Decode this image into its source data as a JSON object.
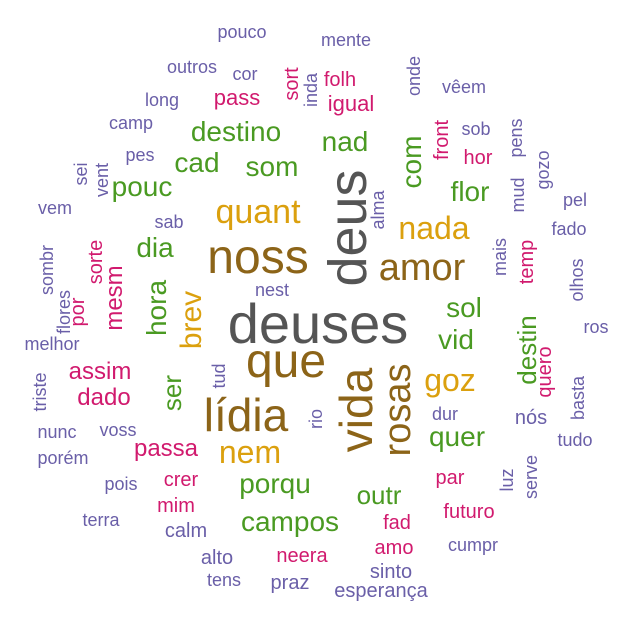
{
  "palette": {
    "gray": "#555555",
    "brown": "#8C6418",
    "gold": "#DBA00E",
    "green": "#4A9A22",
    "magenta": "#D11A6E",
    "purple": "#6A5FA8"
  },
  "words": [
    {
      "text": "deuses",
      "color": "gray",
      "level": 10
    },
    {
      "text": "deus",
      "color": "gray",
      "level": 9
    },
    {
      "text": "noss",
      "color": "brown",
      "level": 8
    },
    {
      "text": "que",
      "color": "brown",
      "level": 8
    },
    {
      "text": "lídia",
      "color": "brown",
      "level": 8
    },
    {
      "text": "vida",
      "color": "brown",
      "level": 8
    },
    {
      "text": "amor",
      "color": "brown",
      "level": 7
    },
    {
      "text": "rosas",
      "color": "brown",
      "level": 7
    },
    {
      "text": "quant",
      "color": "gold",
      "level": 6
    },
    {
      "text": "nada",
      "color": "gold",
      "level": 6
    },
    {
      "text": "nem",
      "color": "gold",
      "level": 6
    },
    {
      "text": "goz",
      "color": "gold",
      "level": 6
    },
    {
      "text": "brev",
      "color": "gold",
      "level": 6
    },
    {
      "text": "destino",
      "color": "green",
      "level": 5
    },
    {
      "text": "nad",
      "color": "green",
      "level": 5
    },
    {
      "text": "com",
      "color": "green",
      "level": 5
    },
    {
      "text": "cad",
      "color": "green",
      "level": 5
    },
    {
      "text": "som",
      "color": "green",
      "level": 5
    },
    {
      "text": "pouc",
      "color": "green",
      "level": 5
    },
    {
      "text": "flor",
      "color": "green",
      "level": 5
    },
    {
      "text": "dia",
      "color": "green",
      "level": 5
    },
    {
      "text": "sol",
      "color": "green",
      "level": 5
    },
    {
      "text": "hora",
      "color": "green",
      "level": 5
    },
    {
      "text": "vid",
      "color": "green",
      "level": 5
    },
    {
      "text": "ser",
      "color": "green",
      "level": 5
    },
    {
      "text": "quer",
      "color": "green",
      "level": 5
    },
    {
      "text": "porqu",
      "color": "green",
      "level": 5
    },
    {
      "text": "outr",
      "color": "green",
      "level": 5
    },
    {
      "text": "campos",
      "color": "green",
      "level": 5
    },
    {
      "text": "destin",
      "color": "green",
      "level": 5
    },
    {
      "text": "passa",
      "color": "magenta",
      "level": 4
    },
    {
      "text": "assim",
      "color": "magenta",
      "level": 4
    },
    {
      "text": "dado",
      "color": "magenta",
      "level": 4
    },
    {
      "text": "mesm",
      "color": "magenta",
      "level": 4
    },
    {
      "text": "pass",
      "color": "magenta",
      "level": 4
    },
    {
      "text": "igual",
      "color": "magenta",
      "level": 4
    },
    {
      "text": "sort",
      "color": "magenta",
      "level": 3
    },
    {
      "text": "folh",
      "color": "magenta",
      "level": 3
    },
    {
      "text": "hor",
      "color": "magenta",
      "level": 3
    },
    {
      "text": "front",
      "color": "magenta",
      "level": 3
    },
    {
      "text": "temp",
      "color": "magenta",
      "level": 3
    },
    {
      "text": "quero",
      "color": "magenta",
      "level": 3
    },
    {
      "text": "crer",
      "color": "magenta",
      "level": 3
    },
    {
      "text": "mim",
      "color": "magenta",
      "level": 3
    },
    {
      "text": "par",
      "color": "magenta",
      "level": 3
    },
    {
      "text": "futuro",
      "color": "magenta",
      "level": 3
    },
    {
      "text": "fad",
      "color": "magenta",
      "level": 3
    },
    {
      "text": "neera",
      "color": "magenta",
      "level": 3
    },
    {
      "text": "amo",
      "color": "magenta",
      "level": 3
    },
    {
      "text": "por",
      "color": "magenta",
      "level": 3
    },
    {
      "text": "sorte",
      "color": "magenta",
      "level": 3
    },
    {
      "text": "pouco",
      "color": "purple",
      "level": 1
    },
    {
      "text": "mente",
      "color": "purple",
      "level": 1
    },
    {
      "text": "outros",
      "color": "purple",
      "level": 1
    },
    {
      "text": "cor",
      "color": "purple",
      "level": 1
    },
    {
      "text": "onde",
      "color": "purple",
      "level": 1
    },
    {
      "text": "vêem",
      "color": "purple",
      "level": 1
    },
    {
      "text": "inda",
      "color": "purple",
      "level": 1
    },
    {
      "text": "long",
      "color": "purple",
      "level": 1
    },
    {
      "text": "camp",
      "color": "purple",
      "level": 1
    },
    {
      "text": "sob",
      "color": "purple",
      "level": 1
    },
    {
      "text": "pens",
      "color": "purple",
      "level": 1
    },
    {
      "text": "pes",
      "color": "purple",
      "level": 1
    },
    {
      "text": "gozo",
      "color": "purple",
      "level": 1
    },
    {
      "text": "sei",
      "color": "purple",
      "level": 1
    },
    {
      "text": "vent",
      "color": "purple",
      "level": 1
    },
    {
      "text": "vem",
      "color": "purple",
      "level": 1
    },
    {
      "text": "alma",
      "color": "purple",
      "level": 1
    },
    {
      "text": "mud",
      "color": "purple",
      "level": 1
    },
    {
      "text": "pel",
      "color": "purple",
      "level": 1
    },
    {
      "text": "sab",
      "color": "purple",
      "level": 1
    },
    {
      "text": "fado",
      "color": "purple",
      "level": 1
    },
    {
      "text": "sombr",
      "color": "purple",
      "level": 1
    },
    {
      "text": "mais",
      "color": "purple",
      "level": 1
    },
    {
      "text": "olhos",
      "color": "purple",
      "level": 1
    },
    {
      "text": "flores",
      "color": "purple",
      "level": 1
    },
    {
      "text": "nest",
      "color": "purple",
      "level": 1
    },
    {
      "text": "ros",
      "color": "purple",
      "level": 1
    },
    {
      "text": "melhor",
      "color": "purple",
      "level": 1
    },
    {
      "text": "tud",
      "color": "purple",
      "level": 1
    },
    {
      "text": "triste",
      "color": "purple",
      "level": 1
    },
    {
      "text": "basta",
      "color": "purple",
      "level": 1
    },
    {
      "text": "rio",
      "color": "purple",
      "level": 1
    },
    {
      "text": "dur",
      "color": "purple",
      "level": 1
    },
    {
      "text": "nunc",
      "color": "purple",
      "level": 1
    },
    {
      "text": "voss",
      "color": "purple",
      "level": 1
    },
    {
      "text": "nós",
      "color": "purple",
      "level": 1
    },
    {
      "text": "tudo",
      "color": "purple",
      "level": 1
    },
    {
      "text": "porém",
      "color": "purple",
      "level": 1
    },
    {
      "text": "pois",
      "color": "purple",
      "level": 1
    },
    {
      "text": "luz",
      "color": "purple",
      "level": 1
    },
    {
      "text": "serve",
      "color": "purple",
      "level": 1
    },
    {
      "text": "terra",
      "color": "purple",
      "level": 1
    },
    {
      "text": "calm",
      "color": "purple",
      "level": 1
    },
    {
      "text": "alto",
      "color": "purple",
      "level": 1
    },
    {
      "text": "tens",
      "color": "purple",
      "level": 1
    },
    {
      "text": "cumpr",
      "color": "purple",
      "level": 1
    },
    {
      "text": "praz",
      "color": "purple",
      "level": 1
    },
    {
      "text": "sinto",
      "color": "purple",
      "level": 1
    },
    {
      "text": "esperança",
      "color": "purple",
      "level": 1
    }
  ]
}
